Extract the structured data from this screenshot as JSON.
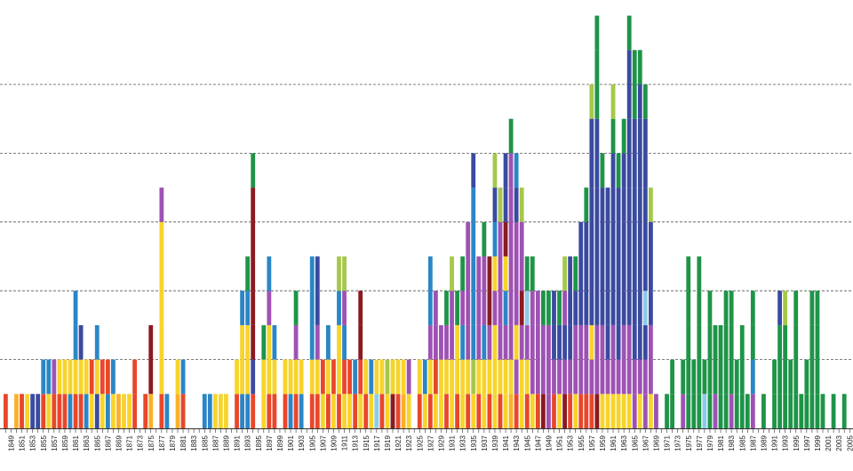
{
  "chart_data": {
    "type": "bar",
    "stacked": true,
    "title": "",
    "xlabel": "",
    "ylabel": "",
    "ylim": [
      0,
      11
    ],
    "grid": "horizontal dashed",
    "legend": "none",
    "x_start": 1848,
    "x_end": 2006,
    "x_tick_labels": [
      "1849",
      "1851",
      "1853",
      "1855",
      "1857",
      "1859",
      "1861",
      "1863",
      "1865",
      "1867",
      "1869",
      "1871",
      "1873",
      "1875",
      "1877",
      "1879",
      "1881",
      "1883",
      "1885",
      "1887",
      "1889",
      "1891",
      "1893",
      "1895",
      "1897",
      "1899",
      "1901",
      "1903",
      "1905",
      "1907",
      "1909",
      "1911",
      "1913",
      "1915",
      "1917",
      "1919",
      "1921",
      "1923",
      "1925",
      "1927",
      "1929",
      "1931",
      "1933",
      "1935",
      "1937",
      "1939",
      "1941",
      "1943",
      "1945",
      "1947",
      "1949",
      "1951",
      "1953",
      "1955",
      "1957",
      "1959",
      "1961",
      "1963",
      "1965",
      "1967",
      "1969",
      "1971",
      "1973",
      "1975",
      "1977",
      "1979",
      "1981",
      "1983",
      "1985",
      "1987",
      "1989",
      "1991",
      "1993",
      "1995",
      "1997",
      "1999",
      "2001",
      "2003",
      "2005"
    ],
    "colors": [
      "#e8472a",
      "#f7d42a",
      "#2a86c6",
      "#9e52b4",
      "#a5c84a",
      "#1e9448",
      "#3a4aa0",
      "#8a1a20",
      "#fbb02a",
      "#8ccbe8"
    ],
    "bars": [
      {
        "year": 1848,
        "segments": [
          0
        ]
      },
      {
        "year": 1850,
        "segments": [
          8
        ]
      },
      {
        "year": 1851,
        "segments": [
          0
        ]
      },
      {
        "year": 1852,
        "segments": [
          1
        ]
      },
      {
        "year": 1853,
        "segments": [
          6
        ]
      },
      {
        "year": 1854,
        "segments": [
          6
        ]
      },
      {
        "year": 1855,
        "segments": [
          0,
          2
        ]
      },
      {
        "year": 1856,
        "segments": [
          1,
          2
        ]
      },
      {
        "year": 1857,
        "segments": [
          0,
          3
        ]
      },
      {
        "year": 1858,
        "segments": [
          0,
          1
        ]
      },
      {
        "year": 1859,
        "segments": [
          0,
          1
        ]
      },
      {
        "year": 1860,
        "segments": [
          2,
          1
        ]
      },
      {
        "year": 1861,
        "segments": [
          0,
          1,
          2,
          2
        ]
      },
      {
        "year": 1862,
        "segments": [
          0,
          1,
          6
        ]
      },
      {
        "year": 1863,
        "segments": [
          2,
          1
        ]
      },
      {
        "year": 1864,
        "segments": [
          1,
          0
        ]
      },
      {
        "year": 1865,
        "segments": [
          6,
          1,
          2
        ]
      },
      {
        "year": 1866,
        "segments": [
          1,
          0
        ]
      },
      {
        "year": 1867,
        "segments": [
          2,
          0
        ]
      },
      {
        "year": 1868,
        "segments": [
          1,
          2
        ]
      },
      {
        "year": 1869,
        "segments": [
          8
        ]
      },
      {
        "year": 1870,
        "segments": [
          1
        ]
      },
      {
        "year": 1871,
        "segments": [
          1
        ]
      },
      {
        "year": 1872,
        "segments": [
          0,
          0
        ]
      },
      {
        "year": 1874,
        "segments": [
          0
        ]
      },
      {
        "year": 1875,
        "segments": [
          8,
          7,
          7
        ]
      },
      {
        "year": 1877,
        "segments": [
          0,
          1,
          1,
          1,
          1,
          1,
          3
        ]
      },
      {
        "year": 1878,
        "segments": [
          2
        ]
      },
      {
        "year": 1880,
        "segments": [
          8,
          1
        ]
      },
      {
        "year": 1881,
        "segments": [
          0,
          2
        ]
      },
      {
        "year": 1885,
        "segments": [
          2
        ]
      },
      {
        "year": 1886,
        "segments": [
          2
        ]
      },
      {
        "year": 1887,
        "segments": [
          1
        ]
      },
      {
        "year": 1888,
        "segments": [
          1
        ]
      },
      {
        "year": 1889,
        "segments": [
          1
        ]
      },
      {
        "year": 1891,
        "segments": [
          0,
          1
        ]
      },
      {
        "year": 1892,
        "segments": [
          2,
          1,
          1,
          2
        ]
      },
      {
        "year": 1893,
        "segments": [
          2,
          1,
          1,
          2,
          5
        ]
      },
      {
        "year": 1894,
        "segments": [
          0,
          6,
          7,
          7,
          7,
          7,
          7,
          5
        ]
      },
      {
        "year": 1896,
        "segments": [
          1,
          1,
          5
        ]
      },
      {
        "year": 1897,
        "segments": [
          0,
          1,
          1,
          3,
          2
        ]
      },
      {
        "year": 1898,
        "segments": [
          0,
          1,
          2
        ]
      },
      {
        "year": 1900,
        "segments": [
          0,
          1
        ]
      },
      {
        "year": 1901,
        "segments": [
          2,
          1
        ]
      },
      {
        "year": 1902,
        "segments": [
          0,
          1,
          3,
          5
        ]
      },
      {
        "year": 1903,
        "segments": [
          2,
          1
        ]
      },
      {
        "year": 1905,
        "segments": [
          0,
          1,
          2,
          2,
          2
        ]
      },
      {
        "year": 1906,
        "segments": [
          0,
          1,
          3,
          6,
          6
        ]
      },
      {
        "year": 1907,
        "segments": [
          1,
          0
        ]
      },
      {
        "year": 1908,
        "segments": [
          0,
          1,
          2
        ]
      },
      {
        "year": 1909,
        "segments": [
          1,
          0
        ]
      },
      {
        "year": 1910,
        "segments": [
          0,
          1,
          1,
          2,
          4
        ]
      },
      {
        "year": 1911,
        "segments": [
          1,
          0,
          2,
          3,
          4
        ]
      },
      {
        "year": 1912,
        "segments": [
          1,
          0
        ]
      },
      {
        "year": 1913,
        "segments": [
          0,
          2
        ]
      },
      {
        "year": 1914,
        "segments": [
          1,
          0,
          7,
          7
        ]
      },
      {
        "year": 1915,
        "segments": [
          0,
          1
        ]
      },
      {
        "year": 1916,
        "segments": [
          1,
          2
        ]
      },
      {
        "year": 1917,
        "segments": [
          9,
          1
        ]
      },
      {
        "year": 1918,
        "segments": [
          0,
          1
        ]
      },
      {
        "year": 1919,
        "segments": [
          1,
          4
        ]
      },
      {
        "year": 1920,
        "segments": [
          7,
          1
        ]
      },
      {
        "year": 1921,
        "segments": [
          0,
          1
        ]
      },
      {
        "year": 1922,
        "segments": [
          8,
          1
        ]
      },
      {
        "year": 1923,
        "segments": [
          1,
          3
        ]
      },
      {
        "year": 1925,
        "segments": [
          0,
          1
        ]
      },
      {
        "year": 1926,
        "segments": [
          1,
          2
        ]
      },
      {
        "year": 1927,
        "segments": [
          0,
          1,
          3,
          2,
          2
        ]
      },
      {
        "year": 1928,
        "segments": [
          1,
          0,
          3,
          3
        ]
      },
      {
        "year": 1929,
        "segments": [
          1,
          1,
          3
        ]
      },
      {
        "year": 1930,
        "segments": [
          0,
          1,
          3,
          5
        ]
      },
      {
        "year": 1931,
        "segments": [
          1,
          1,
          3,
          3,
          4
        ]
      },
      {
        "year": 1932,
        "segments": [
          0,
          1,
          1,
          5
        ]
      },
      {
        "year": 1933,
        "segments": [
          1,
          1,
          2,
          3,
          5
        ]
      },
      {
        "year": 1934,
        "segments": [
          0,
          1,
          3,
          3,
          3,
          3
        ]
      },
      {
        "year": 1935,
        "segments": [
          1,
          4,
          2,
          2,
          2,
          2,
          2,
          6
        ]
      },
      {
        "year": 1936,
        "segments": [
          0,
          1,
          3,
          3,
          3
        ]
      },
      {
        "year": 1937,
        "segments": [
          1,
          1,
          2,
          3,
          3,
          5
        ]
      },
      {
        "year": 1938,
        "segments": [
          0,
          1,
          3,
          7,
          7
        ]
      },
      {
        "year": 1939,
        "segments": [
          1,
          1,
          1,
          3,
          1,
          2,
          6,
          4
        ]
      },
      {
        "year": 1940,
        "segments": [
          0,
          1,
          3,
          3,
          3,
          3,
          4
        ]
      },
      {
        "year": 1941,
        "segments": [
          1,
          1,
          3,
          2,
          1,
          7,
          6,
          6
        ]
      },
      {
        "year": 1942,
        "segments": [
          8,
          1,
          3,
          3,
          3,
          3,
          3,
          3,
          5
        ]
      },
      {
        "year": 1943,
        "segments": [
          0,
          3,
          1,
          3,
          3,
          3,
          6,
          2
        ]
      },
      {
        "year": 1944,
        "segments": [
          1,
          1,
          3,
          7,
          3,
          3,
          4
        ]
      },
      {
        "year": 1945,
        "segments": [
          0,
          1,
          3,
          9,
          5
        ]
      },
      {
        "year": 1946,
        "segments": [
          1,
          3,
          3,
          3,
          5
        ]
      },
      {
        "year": 1947,
        "segments": [
          0,
          3,
          3,
          3
        ]
      },
      {
        "year": 1948,
        "segments": [
          7,
          3,
          3,
          5
        ]
      },
      {
        "year": 1949,
        "segments": [
          3,
          3,
          3,
          5
        ]
      },
      {
        "year": 1950,
        "segments": [
          0,
          3,
          6,
          6
        ]
      },
      {
        "year": 1951,
        "segments": [
          1,
          3,
          6,
          5
        ]
      },
      {
        "year": 1952,
        "segments": [
          7,
          3,
          6,
          3,
          4
        ]
      },
      {
        "year": 1953,
        "segments": [
          0,
          3,
          6,
          6,
          6
        ]
      },
      {
        "year": 1954,
        "segments": [
          1,
          3,
          3,
          6,
          5
        ]
      },
      {
        "year": 1955,
        "segments": [
          0,
          3,
          3,
          6,
          6,
          6
        ]
      },
      {
        "year": 1956,
        "segments": [
          0,
          3,
          3,
          6,
          6,
          6,
          5
        ]
      },
      {
        "year": 1957,
        "segments": [
          0,
          3,
          1,
          6,
          6,
          6,
          6,
          6,
          6,
          4
        ]
      },
      {
        "year": 1958,
        "segments": [
          7,
          3,
          3,
          6,
          6,
          6,
          6,
          6,
          6,
          5,
          5,
          5
        ]
      },
      {
        "year": 1959,
        "segments": [
          1,
          3,
          3,
          6,
          6,
          6,
          6,
          5
        ]
      },
      {
        "year": 1960,
        "segments": [
          1,
          3,
          6,
          6,
          6,
          6,
          6
        ]
      },
      {
        "year": 1961,
        "segments": [
          1,
          3,
          3,
          6,
          6,
          6,
          6,
          6,
          5,
          4
        ]
      },
      {
        "year": 1962,
        "segments": [
          1,
          3,
          6,
          6,
          6,
          6,
          6,
          5
        ]
      },
      {
        "year": 1963,
        "segments": [
          1,
          3,
          3,
          6,
          6,
          6,
          6,
          6,
          5
        ]
      },
      {
        "year": 1964,
        "segments": [
          1,
          3,
          3,
          6,
          6,
          6,
          6,
          6,
          6,
          6,
          6,
          5
        ]
      },
      {
        "year": 1965,
        "segments": [
          3,
          3,
          6,
          6,
          6,
          6,
          6,
          6,
          6,
          5,
          5
        ]
      },
      {
        "year": 1966,
        "segments": [
          1,
          3,
          6,
          6,
          6,
          6,
          6,
          6,
          6,
          6,
          5
        ]
      },
      {
        "year": 1967,
        "segments": [
          3,
          3,
          6,
          9,
          6,
          6,
          6,
          6,
          6,
          5
        ]
      },
      {
        "year": 1968,
        "segments": [
          1,
          3,
          3,
          6,
          6,
          6,
          4
        ]
      },
      {
        "year": 1969,
        "segments": [
          3
        ]
      },
      {
        "year": 1971,
        "segments": [
          5
        ]
      },
      {
        "year": 1972,
        "segments": [
          5,
          5
        ]
      },
      {
        "year": 1974,
        "segments": [
          3,
          5
        ]
      },
      {
        "year": 1975,
        "segments": [
          5,
          5,
          5,
          5,
          5
        ]
      },
      {
        "year": 1976,
        "segments": [
          5,
          5
        ]
      },
      {
        "year": 1977,
        "segments": [
          5,
          5,
          5,
          5,
          5
        ]
      },
      {
        "year": 1978,
        "segments": [
          9,
          5
        ]
      },
      {
        "year": 1979,
        "segments": [
          5,
          5,
          5,
          5
        ]
      },
      {
        "year": 1980,
        "segments": [
          3,
          5,
          5
        ]
      },
      {
        "year": 1981,
        "segments": [
          5,
          5,
          5
        ]
      },
      {
        "year": 1982,
        "segments": [
          5,
          5,
          5,
          5
        ]
      },
      {
        "year": 1983,
        "segments": [
          3,
          5,
          5,
          5
        ]
      },
      {
        "year": 1984,
        "segments": [
          5,
          5
        ]
      },
      {
        "year": 1985,
        "segments": [
          5,
          5,
          5
        ]
      },
      {
        "year": 1986,
        "segments": [
          5
        ]
      },
      {
        "year": 1987,
        "segments": [
          3,
          2,
          5,
          5
        ]
      },
      {
        "year": 1989,
        "segments": [
          5
        ]
      },
      {
        "year": 1991,
        "segments": [
          5,
          5
        ]
      },
      {
        "year": 1992,
        "segments": [
          5,
          5,
          5,
          6
        ]
      },
      {
        "year": 1993,
        "segments": [
          5,
          5,
          5,
          4
        ]
      },
      {
        "year": 1994,
        "segments": [
          5,
          5
        ]
      },
      {
        "year": 1995,
        "segments": [
          5,
          5,
          5,
          5
        ]
      },
      {
        "year": 1996,
        "segments": [
          5
        ]
      },
      {
        "year": 1997,
        "segments": [
          5,
          5
        ]
      },
      {
        "year": 1998,
        "segments": [
          5,
          5,
          5,
          5
        ]
      },
      {
        "year": 1999,
        "segments": [
          5,
          5,
          5,
          5
        ]
      },
      {
        "year": 2000,
        "segments": [
          5
        ]
      },
      {
        "year": 2002,
        "segments": [
          5
        ]
      },
      {
        "year": 2004,
        "segments": [
          5
        ]
      }
    ]
  }
}
